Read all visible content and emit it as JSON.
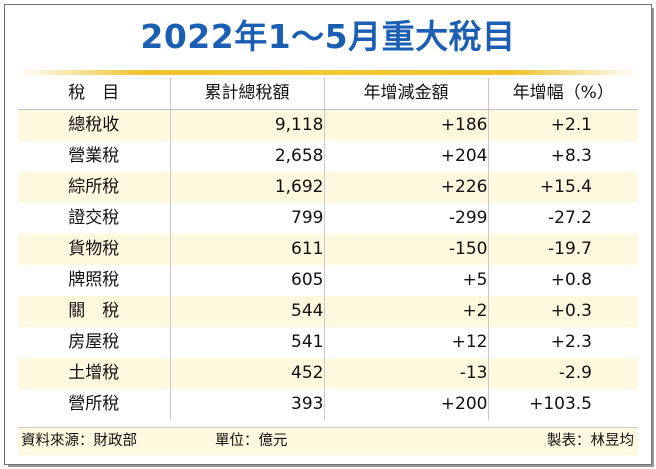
{
  "title": "2022年1～5月重大稅目",
  "headers": [
    "稅　目",
    "累計總稅額",
    "年增減金額",
    "年增幅（%）"
  ],
  "rows": [
    {
      "name": "總稅收",
      "total": "9,118",
      "change": "+186",
      "pct": "+2.1"
    },
    {
      "name": "營業稅",
      "total": "2,658",
      "change": "+204",
      "pct": "+8.3"
    },
    {
      "name": "綜所稅",
      "total": "1,692",
      "change": "+226",
      "pct": "+15.4"
    },
    {
      "name": "證交稅",
      "total": "799",
      "change": "-299",
      "pct": "-27.2"
    },
    {
      "name": "貨物稅",
      "total": "611",
      "change": "-150",
      "pct": "-19.7"
    },
    {
      "name": "牌照稅",
      "total": "605",
      "change": "+5",
      "pct": "+0.8"
    },
    {
      "name": "關　稅",
      "total": "544",
      "change": "+2",
      "pct": "+0.3"
    },
    {
      "name": "房屋稅",
      "total": "541",
      "change": "+12",
      "pct": "+2.3"
    },
    {
      "name": "土增稅",
      "total": "452",
      "change": "-13",
      "pct": "-2.9"
    },
    {
      "name": "營所稅",
      "total": "393",
      "change": "+200",
      "pct": "+103.5"
    }
  ],
  "footer": {
    "source": "資料來源：財政部",
    "unit": "單位：億元",
    "maker": "製表：林昱均"
  },
  "colors": {
    "title": "#1a5fb4",
    "accent_line": "#f3c935",
    "stripe": "#fdf8de"
  },
  "chart_data": {
    "type": "table",
    "title": "2022年1～5月重大稅目",
    "columns": [
      "稅　目",
      "累計總稅額",
      "年增減金額",
      "年增幅（%）"
    ],
    "rows": [
      [
        "總稅收",
        9118,
        186,
        2.1
      ],
      [
        "營業稅",
        2658,
        204,
        8.3
      ],
      [
        "綜所稅",
        1692,
        226,
        15.4
      ],
      [
        "證交稅",
        799,
        -299,
        -27.2
      ],
      [
        "貨物稅",
        611,
        -150,
        -19.7
      ],
      [
        "牌照稅",
        605,
        5,
        0.8
      ],
      [
        "關　稅",
        544,
        2,
        0.3
      ],
      [
        "房屋稅",
        541,
        12,
        2.3
      ],
      [
        "土增稅",
        452,
        -13,
        -2.9
      ],
      [
        "營所稅",
        393,
        200,
        103.5
      ]
    ],
    "unit": "單位：億元"
  }
}
